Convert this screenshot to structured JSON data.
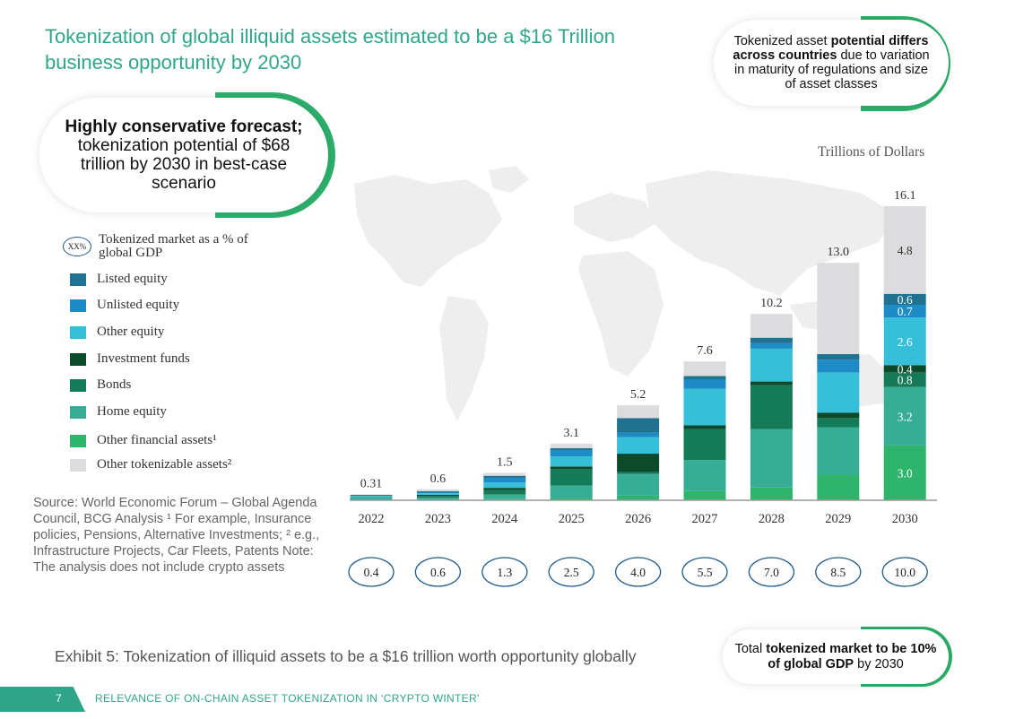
{
  "title": "Tokenization of global illiquid assets estimated to be a $16 Trillion business opportunity by 2030",
  "callout_countries": {
    "pre": "Tokenized asset ",
    "bold": "potential differs across countries",
    "post": " due to variation in maturity of regulations and size of asset classes"
  },
  "callout_forecast": {
    "bold": "Highly conservative forecast;",
    "post": "tokenization potential of $68 trillion by 2030 in best-case scenario"
  },
  "callout_gdp": {
    "pre": "Total ",
    "bold": "tokenized market to be 10% of global GDP",
    "post": " by 2030"
  },
  "legend": {
    "gdp_badge": "XX%",
    "gdp_label": "Tokenized market as a % of global GDP",
    "items": [
      {
        "label": "Listed equity",
        "color": "#1f7390"
      },
      {
        "label": "Unlisted equity",
        "color": "#1d8bc6"
      },
      {
        "label": "Other equity",
        "color": "#36bfd8"
      },
      {
        "label": "Investment funds",
        "color": "#0c4a2c"
      },
      {
        "label": "Bonds",
        "color": "#157a58"
      },
      {
        "label": "Home equity",
        "color": "#36ad95"
      },
      {
        "label": "Other financial assets¹",
        "color": "#2fb46c"
      },
      {
        "label": "Other tokenizable assets²",
        "color": "#dcdcde"
      }
    ]
  },
  "source": "Source: World Economic Forum – Global Agenda Council, BCG Analysis ¹ For example, Insurance policies, Pensions, Alternative Investments; ² e.g., Infrastructure Projects, Car Fleets, Patents Note: The analysis does not include crypto assets",
  "exhibit": "Exhibit 5: Tokenization of illiquid assets to be a $16 trillion worth opportunity globally",
  "footer": {
    "page": "7",
    "text": "RELEVANCE OF ON-CHAIN ASSET TOKENIZATION IN ‘CRYPTO WINTER’"
  },
  "chart_data": {
    "type": "bar",
    "stacked": true,
    "unit_label": "Trillions of Dollars",
    "categories": [
      "2022",
      "2023",
      "2024",
      "2025",
      "2026",
      "2027",
      "2028",
      "2029",
      "2030"
    ],
    "totals": [
      "0.31",
      "0.6",
      "1.5",
      "3.1",
      "5.2",
      "7.6",
      "10.2",
      "13.0",
      "16.1"
    ],
    "gdp_share": [
      "0.4",
      "0.6",
      "1.3",
      "2.5",
      "4.0",
      "5.5",
      "7.0",
      "8.5",
      "10.0"
    ],
    "ylim": [
      0,
      16.1
    ],
    "series": [
      {
        "name": "Other financial assets¹",
        "color": "#2fb46c",
        "values": [
          0.02,
          0.02,
          0.06,
          0.1,
          0.25,
          0.5,
          0.7,
          1.4,
          3.0
        ]
      },
      {
        "name": "Home equity",
        "color": "#36ad95",
        "values": [
          0.17,
          0.12,
          0.25,
          0.7,
          1.2,
          1.7,
          3.2,
          2.6,
          3.2
        ]
      },
      {
        "name": "Bonds",
        "color": "#157a58",
        "values": [
          0.0,
          0.1,
          0.25,
          0.9,
          0.1,
          1.7,
          2.4,
          0.5,
          0.8
        ]
      },
      {
        "name": "Investment funds",
        "color": "#0c4a2c",
        "values": [
          0.0,
          0.06,
          0.12,
          0.15,
          1.0,
          0.2,
          0.2,
          0.3,
          0.4
        ]
      },
      {
        "name": "Other equity",
        "color": "#36bfd8",
        "values": [
          0.05,
          0.08,
          0.3,
          0.55,
          0.9,
          2.0,
          1.8,
          2.2,
          2.6
        ]
      },
      {
        "name": "Unlisted equity",
        "color": "#1d8bc6",
        "values": [
          0.03,
          0.06,
          0.25,
          0.35,
          0.25,
          0.5,
          0.3,
          0.7,
          0.7
        ]
      },
      {
        "name": "Listed equity",
        "color": "#1f7390",
        "values": [
          0.03,
          0.05,
          0.11,
          0.1,
          0.8,
          0.2,
          0.3,
          0.3,
          0.6
        ]
      },
      {
        "name": "Other tokenizable assets²",
        "color": "#dcdcde",
        "values": [
          0.01,
          0.11,
          0.16,
          0.25,
          0.7,
          0.8,
          1.3,
          5.0,
          4.8
        ]
      }
    ],
    "segment_labels_2030": [
      "3.0",
      "3.2",
      "0.8",
      "0.4",
      "2.6",
      "0.7",
      "0.6",
      "4.8"
    ]
  }
}
